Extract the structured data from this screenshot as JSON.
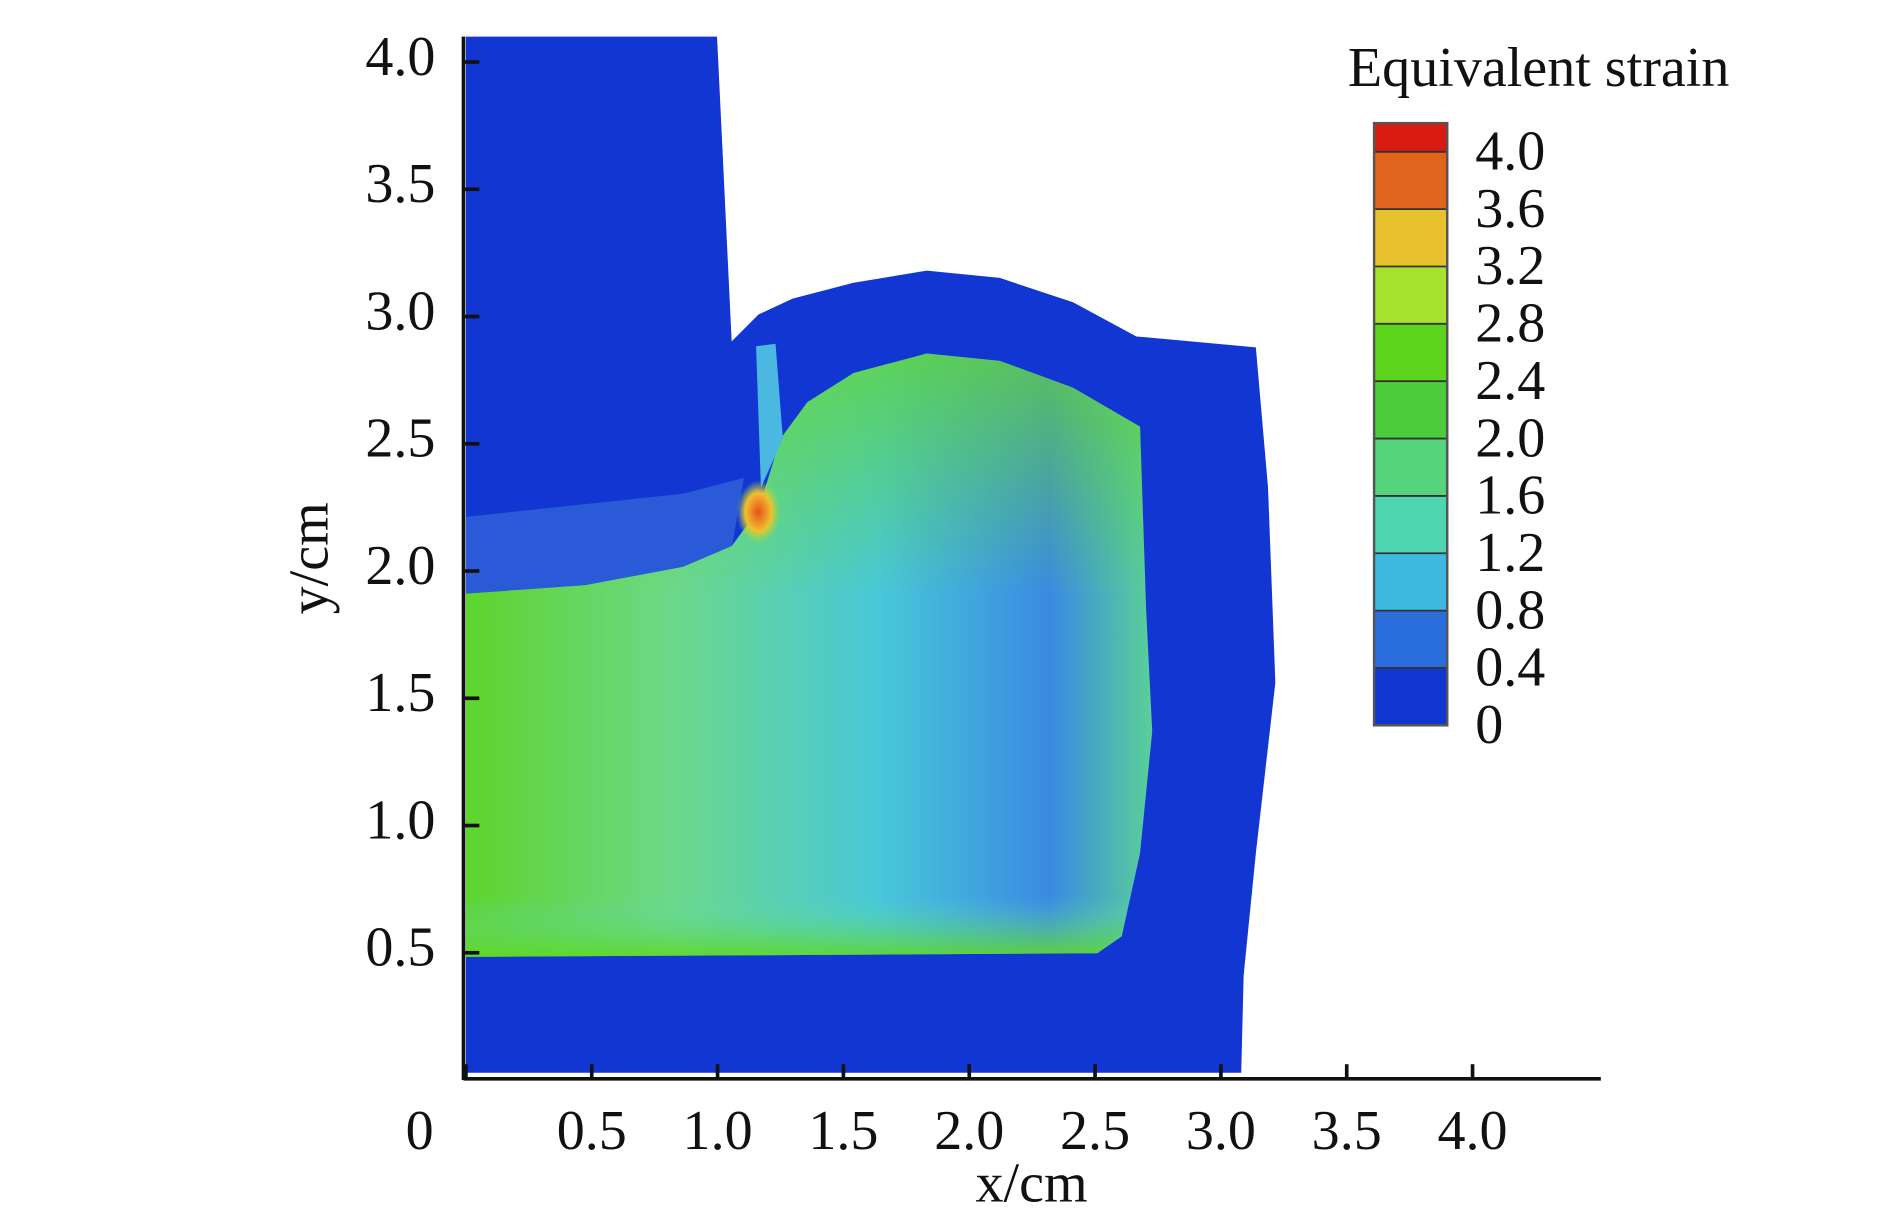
{
  "chart_data": {
    "type": "contour",
    "xlabel": "x/cm",
    "ylabel": "y/cm",
    "xlim": [
      0,
      4.5
    ],
    "ylim": [
      0,
      4.1
    ],
    "xticks": [
      0,
      0.5,
      {
        "value": 1,
        "label": "1.0"
      },
      1.5,
      {
        "value": 2,
        "label": "2.0"
      },
      2.5,
      {
        "value": 3,
        "label": "3.0"
      },
      3.5,
      {
        "value": 4,
        "label": "4.0"
      }
    ],
    "yticks": [
      0.5,
      {
        "value": 1,
        "label": "1.0"
      },
      1.5,
      {
        "value": 2,
        "label": "2.0"
      },
      2.5,
      {
        "value": 3,
        "label": "3.0"
      },
      3.5,
      {
        "value": 4,
        "label": "4.0"
      }
    ],
    "colorbar": {
      "title": "Equivalent strain",
      "lim": [
        0,
        4.2
      ],
      "ticks": [
        0,
        0.4,
        0.8,
        1.2,
        1.6,
        {
          "value": 2,
          "label": "2.0"
        },
        2.4,
        2.8,
        3.2,
        3.6,
        {
          "value": 4,
          "label": "4.0"
        }
      ],
      "colors": [
        "#1236d2",
        "#2a6ede",
        "#3fb8e0",
        "#4fd6b0",
        "#55d47c",
        "#4ccc3c",
        "#5cd41c",
        "#a6e22e",
        "#e8c22c",
        "#e0641e",
        "#d81a10"
      ]
    }
  }
}
